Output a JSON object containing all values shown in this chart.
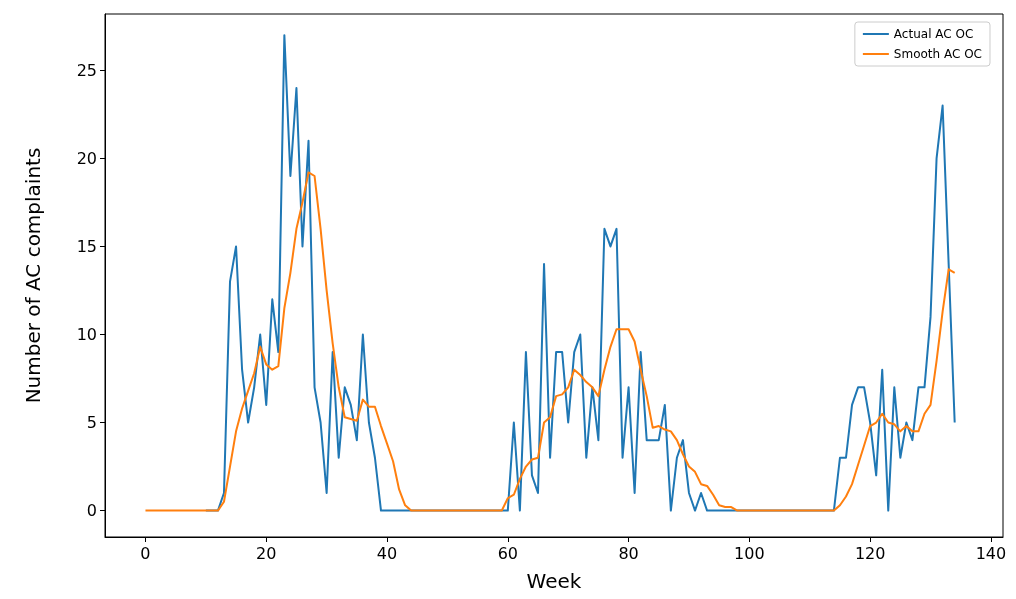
{
  "chart_data": {
    "type": "line",
    "xlabel": "Week",
    "ylabel": "Number of AC complaints",
    "x": [
      0,
      1,
      2,
      3,
      4,
      5,
      6,
      7,
      8,
      9,
      10,
      11,
      12,
      13,
      14,
      15,
      16,
      17,
      18,
      19,
      20,
      21,
      22,
      23,
      24,
      25,
      26,
      27,
      28,
      29,
      30,
      31,
      32,
      33,
      34,
      35,
      36,
      37,
      38,
      39,
      40,
      41,
      42,
      43,
      44,
      45,
      46,
      47,
      48,
      49,
      50,
      51,
      52,
      53,
      54,
      55,
      56,
      57,
      58,
      59,
      60,
      61,
      62,
      63,
      64,
      65,
      66,
      67,
      68,
      69,
      70,
      71,
      72,
      73,
      74,
      75,
      76,
      77,
      78,
      79,
      80,
      81,
      82,
      83,
      84,
      85,
      86,
      87,
      88,
      89,
      90,
      91,
      92,
      93,
      94,
      95,
      96,
      97,
      98,
      99,
      100,
      101,
      102,
      103,
      104,
      105,
      106,
      107,
      108,
      109,
      110,
      111,
      112,
      113,
      114,
      115,
      116,
      117,
      118,
      119,
      120,
      121,
      122,
      123,
      124,
      125,
      126,
      127,
      128,
      129,
      130,
      131,
      132,
      133,
      134
    ],
    "series": [
      {
        "name": "Actual AC OC",
        "color": "#1f77b4",
        "values": [
          null,
          null,
          null,
          null,
          null,
          null,
          null,
          null,
          null,
          null,
          0,
          0,
          0,
          1,
          13,
          15,
          8,
          5,
          7,
          10,
          6,
          12,
          9,
          27,
          19,
          24,
          15,
          21,
          7,
          5,
          1,
          9,
          3,
          7,
          6,
          4,
          10,
          5,
          3,
          0,
          0,
          0,
          0,
          0,
          0,
          0,
          0,
          0,
          0,
          0,
          0,
          0,
          0,
          0,
          0,
          0,
          0,
          0,
          0,
          0,
          0,
          5,
          0,
          9,
          2,
          1,
          14,
          3,
          9,
          9,
          5,
          9,
          10,
          3,
          7,
          4,
          16,
          15,
          16,
          3,
          7,
          1,
          9,
          4,
          4,
          4,
          6,
          0,
          3,
          4,
          1,
          0,
          1,
          0,
          0,
          0,
          0,
          0,
          0,
          0,
          0,
          0,
          0,
          0,
          0,
          0,
          0,
          0,
          0,
          0,
          0,
          0,
          0,
          0,
          0,
          3,
          3,
          6,
          7,
          7,
          5,
          2,
          8,
          0,
          7,
          3,
          5,
          4,
          7,
          7,
          11,
          20,
          23,
          14,
          5
        ]
      },
      {
        "name": "Smooth AC OC",
        "color": "#ff7f0e",
        "values": [
          0,
          0,
          0,
          0,
          0,
          0,
          0,
          0,
          0,
          0,
          0,
          0,
          0,
          0.5,
          2.5,
          4.5,
          5.8,
          6.8,
          7.8,
          9.3,
          8.3,
          8,
          8.2,
          11.5,
          13.5,
          16,
          17.5,
          19.2,
          19,
          16,
          12.5,
          9.5,
          7,
          5.3,
          5.2,
          5.1,
          6.3,
          5.9,
          5.9,
          4.8,
          3.8,
          2.8,
          1.2,
          0.3,
          0,
          0,
          0,
          0,
          0,
          0,
          0,
          0,
          0,
          0,
          0,
          0,
          0,
          0,
          0,
          0,
          0.7,
          0.9,
          1.8,
          2.5,
          2.9,
          3,
          5,
          5.3,
          6.5,
          6.6,
          7,
          8,
          7.7,
          7.3,
          7,
          6.5,
          8,
          9.3,
          10.3,
          10.3,
          10.3,
          9.6,
          8,
          6.5,
          4.7,
          4.8,
          4.6,
          4.5,
          4,
          3.2,
          2.5,
          2.2,
          1.5,
          1.4,
          0.9,
          0.3,
          0.2,
          0.2,
          0,
          0,
          0,
          0,
          0,
          0,
          0,
          0,
          0,
          0,
          0,
          0,
          0,
          0,
          0,
          0,
          0,
          0.3,
          0.8,
          1.5,
          2.6,
          3.7,
          4.8,
          5,
          5.5,
          5,
          4.9,
          4.5,
          4.8,
          4.5,
          4.5,
          5.5,
          6,
          8.5,
          11.3,
          13.7,
          13.5
        ]
      }
    ],
    "xlim": [
      -6.7,
      142
    ],
    "ylim": [
      -1.5,
      28.2
    ],
    "xticks": [
      0,
      20,
      40,
      60,
      80,
      100,
      120,
      140
    ],
    "yticks": [
      0,
      5,
      10,
      15,
      20,
      25
    ],
    "grid": false,
    "legend": "top right",
    "marker": "none",
    "line_style": "solid"
  }
}
